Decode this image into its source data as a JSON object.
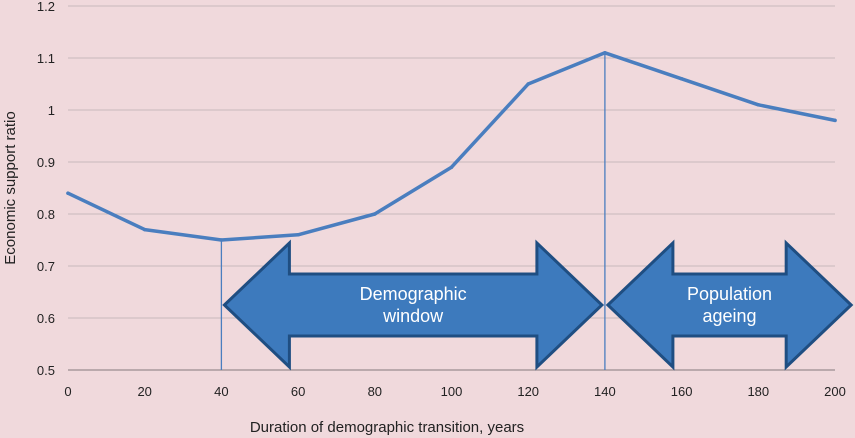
{
  "chart_data": {
    "type": "line",
    "title": "",
    "xlabel": "Duration of demographic transition, years",
    "ylabel": "Economic support ratio",
    "xlim": [
      0,
      200
    ],
    "ylim": [
      0.5,
      1.2
    ],
    "x_ticks": [
      "0",
      "20",
      "40",
      "60",
      "80",
      "100",
      "120",
      "140",
      "160",
      "180",
      "200"
    ],
    "y_ticks": [
      "0.5",
      "0.6",
      "0.7",
      "0.8",
      "0.9",
      "1",
      "1.1",
      "1.2"
    ],
    "grid": true,
    "series": [
      {
        "x": [
          0,
          20,
          40,
          60,
          80,
          100,
          120,
          140,
          160,
          180,
          200
        ],
        "values": [
          0.84,
          0.77,
          0.75,
          0.76,
          0.8,
          0.89,
          1.05,
          1.11,
          1.06,
          1.01,
          0.98
        ],
        "color": "#4a7ebf"
      }
    ],
    "markers": [
      40,
      140
    ],
    "annotations": [
      {
        "label_lines": [
          "Demographic",
          "window"
        ],
        "x_start": 40,
        "x_end": 140
      },
      {
        "label_lines": [
          "Population",
          "ageing"
        ],
        "x_start": 140,
        "x_end": 205
      }
    ],
    "colors": {
      "background": "#f0d9dc",
      "line": "#4a7ebf",
      "arrow_fill": "#3d7abd",
      "arrow_stroke": "#1f4e82",
      "grid": "#c8b9bc"
    }
  }
}
